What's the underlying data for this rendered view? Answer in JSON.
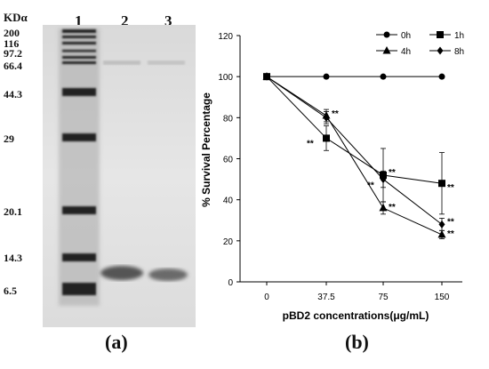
{
  "panel_a": {
    "label": "(a)",
    "unit_label": "KDα",
    "lane_labels": [
      "1",
      "2",
      "3"
    ],
    "marker_labels": [
      "200",
      "116",
      "97.2",
      "66.4",
      "44.3",
      "29",
      "20.1",
      "14.3",
      "6.5"
    ]
  },
  "panel_b": {
    "label": "(b)",
    "significance": "**"
  },
  "chart_data": {
    "type": "line",
    "title": "",
    "xlabel": "pBD2 concentrations(μg/mL)",
    "ylabel": "% Survival Percentage",
    "categories": [
      "0",
      "37.5",
      "75",
      "150"
    ],
    "ylim": [
      0,
      120
    ],
    "yticks": [
      "0",
      "20",
      "40",
      "60",
      "80",
      "100",
      "120"
    ],
    "legend_position": "top-right",
    "series": [
      {
        "name": "0h",
        "marker": "circle",
        "values": [
          100,
          100,
          100,
          100
        ],
        "errors": [
          0,
          0,
          0,
          0
        ],
        "sig": [
          false,
          false,
          false,
          false
        ]
      },
      {
        "name": "1h",
        "marker": "square",
        "values": [
          100,
          70,
          52,
          48
        ],
        "errors": [
          0,
          6,
          13,
          15
        ],
        "sig": [
          false,
          true,
          true,
          true
        ]
      },
      {
        "name": "4h",
        "marker": "triangle",
        "values": [
          100,
          81,
          36,
          23
        ],
        "errors": [
          0,
          3,
          3,
          2
        ],
        "sig": [
          false,
          true,
          true,
          true
        ]
      },
      {
        "name": "8h",
        "marker": "diamond",
        "values": [
          100,
          80,
          50,
          28
        ],
        "errors": [
          0,
          3,
          4,
          3
        ],
        "sig": [
          false,
          false,
          true,
          true
        ]
      }
    ]
  }
}
